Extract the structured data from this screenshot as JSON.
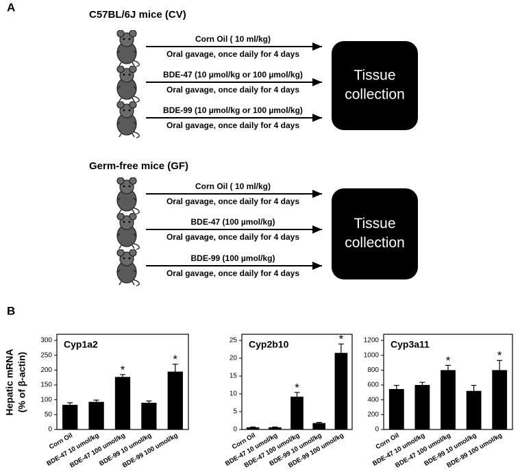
{
  "panel_a": {
    "label": "A",
    "groups": [
      {
        "title": "C57BL/6J mice (CV)",
        "treatments": [
          {
            "name": "Corn Oil  ( 10 ml/kg)",
            "route": "Oral gavage, once daily for 4 days"
          },
          {
            "name": "BDE-47 (10 µmol/kg or 100 µmol/kg)",
            "route": "Oral gavage, once daily for 4 days"
          },
          {
            "name": "BDE-99 (10 µmol/kg or 100 µmol/kg)",
            "route": "Oral gavage, once daily for 4 days"
          }
        ],
        "outcome": [
          "Tissue",
          "collection"
        ]
      },
      {
        "title": "Germ-free mice (GF)",
        "treatments": [
          {
            "name": "Corn Oil  ( 10 ml/kg)",
            "route": "Oral gavage, once daily for 4 days"
          },
          {
            "name": "BDE-47 (100 µmol/kg)",
            "route": "Oral gavage, once daily for 4 days"
          },
          {
            "name": "BDE-99 (100 µmol/kg)",
            "route": "Oral gavage, once daily for 4 days"
          }
        ],
        "outcome": [
          "Tissue",
          "collection"
        ]
      }
    ]
  },
  "panel_b": {
    "label": "B",
    "y_label": [
      "Hepatic mRNA",
      "(% of β-actin)"
    ]
  },
  "chart_data": [
    {
      "type": "bar",
      "title": "Cyp1a2",
      "color": "#000000",
      "categories": [
        "Corn Oil",
        "BDE-47 10 umol/kg",
        "BDE-47 100 umol/kg",
        "BDE-99 10 umol/kg",
        "BDE-99 100 umol/kg"
      ],
      "values": [
        83,
        93,
        177,
        90,
        195
      ],
      "errors": [
        7,
        6,
        8,
        6,
        25
      ],
      "significance": [
        null,
        null,
        "*",
        null,
        "*"
      ],
      "ylim": [
        0,
        300
      ],
      "yticks": [
        0,
        50,
        100,
        150,
        200,
        250,
        300
      ]
    },
    {
      "type": "bar",
      "title": "Cyp2b10",
      "color": "#000000",
      "categories": [
        "Corn Oil",
        "BDE-47 10 umol/kg",
        "BDE-47 100 umol/kg",
        "BDE-99 10 umol/kg",
        "BDE-99 100 umol/kg"
      ],
      "values": [
        0.6,
        0.6,
        9.2,
        1.8,
        21.5
      ],
      "errors": [
        0.1,
        0.1,
        1.2,
        0.2,
        2.5
      ],
      "significance": [
        null,
        null,
        "*",
        null,
        "*"
      ],
      "ylim": [
        0,
        25
      ],
      "yticks": [
        0,
        5,
        10,
        15,
        20,
        25
      ]
    },
    {
      "type": "bar",
      "title": "Cyp3a11",
      "color": "#000000",
      "categories": [
        "Corn Oil",
        "BDE-47 10 umol/kg",
        "BDE-47 100 umol/kg",
        "BDE-99 10 umol/kg",
        "BDE-99 100 umol/kg"
      ],
      "values": [
        545,
        600,
        800,
        520,
        800
      ],
      "errors": [
        50,
        35,
        65,
        75,
        130
      ],
      "significance": [
        null,
        null,
        "*",
        null,
        "*"
      ],
      "ylim": [
        0,
        1200
      ],
      "yticks": [
        0,
        200,
        400,
        600,
        800,
        1000,
        1200
      ]
    }
  ]
}
